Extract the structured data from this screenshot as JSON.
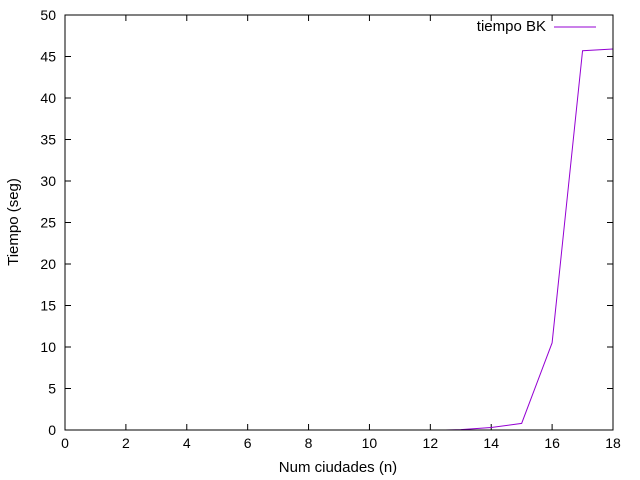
{
  "chart_data": {
    "type": "line",
    "title": "",
    "xlabel": "Num ciudades (n)",
    "ylabel": "Tiempo (seg)",
    "xlim": [
      0,
      18
    ],
    "ylim": [
      0,
      50
    ],
    "xticks": [
      0,
      2,
      4,
      6,
      8,
      10,
      12,
      14,
      16,
      18
    ],
    "yticks": [
      0,
      5,
      10,
      15,
      20,
      25,
      30,
      35,
      40,
      45,
      50
    ],
    "grid": false,
    "legend_position": "top-right",
    "series": [
      {
        "name": "tiempo BK",
        "color": "#9400d3",
        "x": [
          12.5,
          13,
          14,
          15,
          16,
          17,
          18
        ],
        "y": [
          0.0,
          0.05,
          0.3,
          0.8,
          10.5,
          45.7,
          45.9
        ]
      }
    ]
  }
}
